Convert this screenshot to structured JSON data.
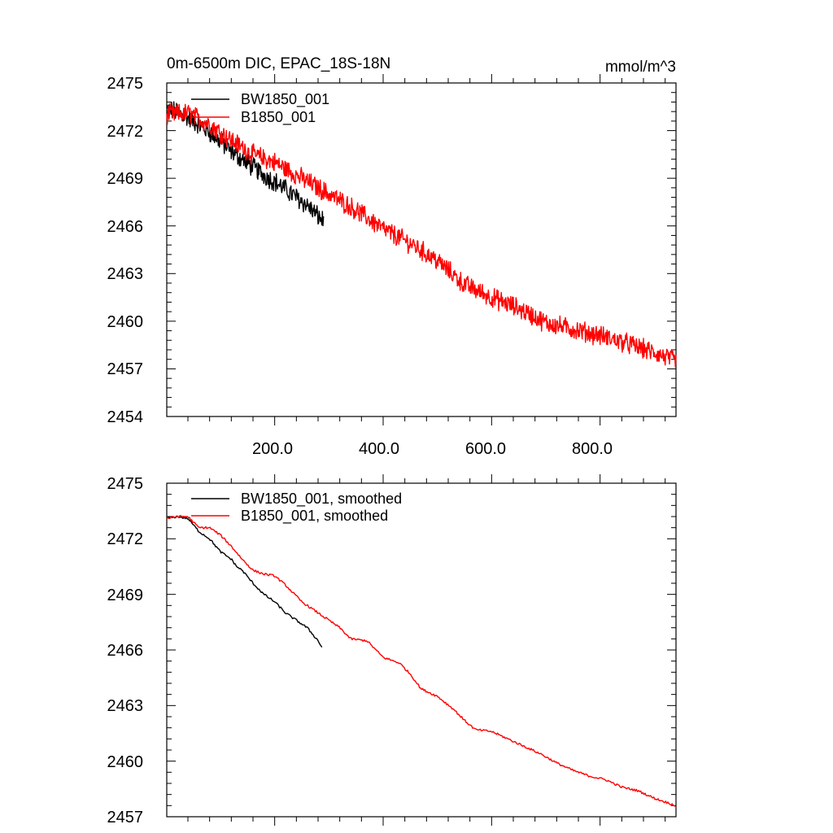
{
  "chart_data": [
    {
      "type": "line",
      "title_left": "0m-6500m DIC, EPAC_18S-18N",
      "title_right": "mmol/m^3",
      "xlabel": "",
      "ylabel": "",
      "xlim": [
        1,
        940
      ],
      "ylim": [
        2454,
        2475
      ],
      "x_ticks": [
        200,
        400,
        600,
        800
      ],
      "x_tick_labels": [
        "200.0",
        "400.0",
        "600.0",
        "800.0"
      ],
      "y_ticks": [
        2454,
        2457,
        2460,
        2463,
        2466,
        2469,
        2472,
        2475
      ],
      "y_tick_labels": [
        "2454",
        "2457",
        "2460",
        "2463",
        "2466",
        "2469",
        "2472",
        "2475"
      ],
      "legend": "top-left",
      "noisy": true,
      "series": [
        {
          "name": "BW1850_001",
          "color": "#000000",
          "x": [
            1,
            20,
            40,
            60,
            80,
            100,
            120,
            140,
            160,
            180,
            200,
            220,
            240,
            260,
            280,
            290
          ],
          "values": [
            2473.3,
            2473.2,
            2472.8,
            2472.4,
            2471.9,
            2471.3,
            2470.7,
            2470.2,
            2469.7,
            2469.2,
            2468.8,
            2468.3,
            2467.8,
            2467.3,
            2466.6,
            2466.3
          ]
        },
        {
          "name": "B1850_001",
          "color": "#ff0000",
          "x": [
            1,
            40,
            80,
            120,
            160,
            200,
            250,
            300,
            350,
            400,
            450,
            500,
            550,
            600,
            650,
            700,
            750,
            800,
            850,
            900,
            940
          ],
          "values": [
            2473.0,
            2473.1,
            2472.4,
            2471.4,
            2470.5,
            2470.0,
            2469.0,
            2468.0,
            2467.0,
            2465.8,
            2464.9,
            2463.8,
            2462.3,
            2461.5,
            2460.8,
            2459.9,
            2459.5,
            2459.1,
            2458.6,
            2458.0,
            2457.5
          ]
        }
      ]
    },
    {
      "type": "line",
      "xlabel": "",
      "ylabel": "",
      "xlim": [
        1,
        940
      ],
      "ylim": [
        2457,
        2475
      ],
      "x_ticks": [
        200,
        400,
        600,
        800
      ],
      "y_ticks": [
        2457,
        2460,
        2463,
        2466,
        2469,
        2472,
        2475
      ],
      "y_tick_labels": [
        "2457",
        "2460",
        "2463",
        "2466",
        "2469",
        "2472",
        "2475"
      ],
      "legend": "top-left",
      "noisy": false,
      "series": [
        {
          "name": "BW1850_001, smoothed",
          "color": "#000000",
          "x": [
            1,
            20,
            40,
            60,
            80,
            100,
            120,
            130,
            140,
            160,
            180,
            200,
            220,
            240,
            260,
            280,
            288
          ],
          "values": [
            2473.1,
            2473.2,
            2473.1,
            2472.4,
            2472.0,
            2471.3,
            2470.9,
            2470.5,
            2470.3,
            2469.6,
            2469.0,
            2468.6,
            2468.0,
            2467.6,
            2467.2,
            2466.5,
            2466.1
          ]
        },
        {
          "name": "B1850_001, smoothed",
          "color": "#ff0000",
          "x": [
            1,
            20,
            40,
            60,
            80,
            100,
            120,
            140,
            160,
            180,
            200,
            220,
            250,
            280,
            300,
            320,
            340,
            370,
            400,
            430,
            450,
            470,
            500,
            530,
            550,
            570,
            600,
            630,
            660,
            690,
            720,
            750,
            780,
            810,
            840,
            870,
            900,
            920,
            940
          ],
          "values": [
            2473.1,
            2473.2,
            2473.2,
            2472.6,
            2472.6,
            2472.2,
            2471.6,
            2470.9,
            2470.3,
            2470.1,
            2470.0,
            2469.5,
            2468.6,
            2468.0,
            2467.6,
            2467.2,
            2466.6,
            2466.5,
            2465.6,
            2465.3,
            2464.7,
            2463.9,
            2463.5,
            2462.8,
            2462.2,
            2461.7,
            2461.6,
            2461.2,
            2460.8,
            2460.4,
            2459.9,
            2459.5,
            2459.2,
            2459.0,
            2458.6,
            2458.4,
            2458.0,
            2457.8,
            2457.6
          ]
        }
      ]
    }
  ]
}
